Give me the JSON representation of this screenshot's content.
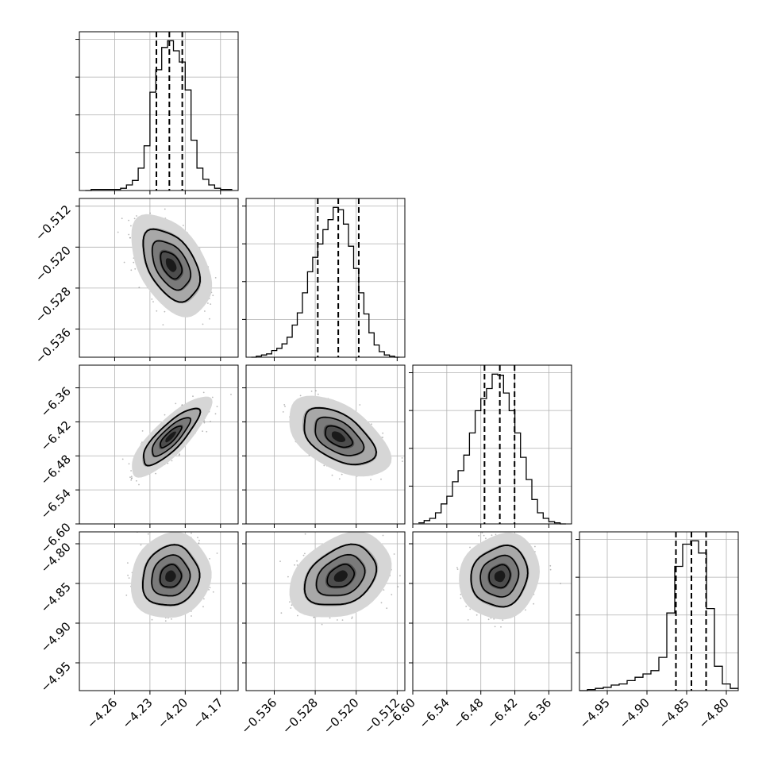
{
  "chart_data": {
    "type": "corner",
    "grid": true,
    "quantiles_shown": [
      0.16,
      0.5,
      0.84
    ],
    "parameters": [
      {
        "range": [
          -4.29,
          -4.155
        ],
        "ticks": [
          -4.26,
          -4.23,
          -4.2,
          -4.17
        ],
        "tick_labels": [
          "−4.26",
          "−4.23",
          "−4.20",
          "−4.17"
        ],
        "quantile_values": [
          -4.2245,
          -4.2135,
          -4.2025
        ],
        "hist_bins": [
          -4.285,
          -4.28,
          -4.275,
          -4.27,
          -4.265,
          -4.26,
          -4.255,
          -4.25,
          -4.245,
          -4.24,
          -4.235,
          -4.23,
          -4.225,
          -4.22,
          -4.215,
          -4.21,
          -4.205,
          -4.2,
          -4.195,
          -4.19,
          -4.185,
          -4.18,
          -4.175,
          -4.17,
          -4.165,
          -4.16
        ],
        "hist_counts": [
          0,
          1,
          1,
          1,
          1,
          1,
          2,
          5,
          9,
          20,
          40,
          88,
          108,
          128,
          134,
          125,
          115,
          90,
          45,
          20,
          10,
          5,
          2,
          1,
          1
        ]
      },
      {
        "range": [
          -0.5415,
          -0.5105
        ],
        "ticks": [
          -0.536,
          -0.528,
          -0.52,
          -0.512
        ],
        "tick_labels": [
          "−0.536",
          "−0.528",
          "−0.520",
          "−0.512"
        ],
        "quantile_values": [
          -0.5275,
          -0.5235,
          -0.5195
        ],
        "hist_bins": [
          -0.5405,
          -0.5395,
          -0.5385,
          -0.5375,
          -0.5365,
          -0.5355,
          -0.5345,
          -0.5335,
          -0.5325,
          -0.5315,
          -0.5305,
          -0.5295,
          -0.5285,
          -0.5275,
          -0.5265,
          -0.5255,
          -0.5245,
          -0.5235,
          -0.5225,
          -0.5215,
          -0.5205,
          -0.5195,
          -0.5185,
          -0.5175,
          -0.5165,
          -0.5155,
          -0.5145,
          -0.5135,
          -0.5125,
          -0.5115
        ],
        "hist_counts": [
          0,
          1,
          2,
          3,
          6,
          8,
          12,
          18,
          29,
          40,
          58,
          77,
          90,
          102,
          115,
          124,
          135,
          133,
          120,
          100,
          80,
          58,
          39,
          22,
          11,
          5,
          2,
          1,
          0
        ]
      },
      {
        "range": [
          -6.6,
          -6.32
        ],
        "ticks": [
          -6.6,
          -6.54,
          -6.48,
          -6.42,
          -6.36
        ],
        "tick_labels": [
          "−6.60",
          "−6.54",
          "−6.48",
          "−6.42",
          "−6.36"
        ],
        "quantile_values": [
          -6.4735,
          -6.4465,
          -6.4205
        ],
        "hist_bins": [
          -6.59,
          -6.58,
          -6.57,
          -6.56,
          -6.55,
          -6.54,
          -6.53,
          -6.52,
          -6.51,
          -6.5,
          -6.49,
          -6.48,
          -6.47,
          -6.46,
          -6.45,
          -6.44,
          -6.43,
          -6.42,
          -6.41,
          -6.4,
          -6.39,
          -6.38,
          -6.37,
          -6.36,
          -6.35,
          -6.34,
          -6.33
        ],
        "hist_counts": [
          1,
          3,
          5,
          10,
          18,
          25,
          38,
          48,
          62,
          82,
          102,
          113,
          122,
          135,
          134,
          118,
          102,
          82,
          60,
          40,
          22,
          10,
          5,
          2,
          1,
          0
        ]
      },
      {
        "range": [
          -4.985,
          -4.785
        ],
        "ticks": [
          -4.95,
          -4.9,
          -4.85,
          -4.8
        ],
        "tick_labels": [
          "−4.95",
          "−4.90",
          "−4.85",
          "−4.80"
        ],
        "quantile_values": [
          -4.8635,
          -4.844,
          -4.8255
        ],
        "hist_bins": [
          -4.985,
          -4.975,
          -4.965,
          -4.955,
          -4.945,
          -4.935,
          -4.925,
          -4.915,
          -4.905,
          -4.895,
          -4.885,
          -4.875,
          -4.865,
          -4.855,
          -4.845,
          -4.835,
          -4.825,
          -4.815,
          -4.805,
          -4.795,
          -4.785
        ],
        "hist_counts": [
          0,
          1,
          2,
          3,
          5,
          6,
          9,
          12,
          15,
          18,
          30,
          70,
          112,
          132,
          135,
          124,
          74,
          22,
          6,
          2
        ]
      }
    ],
    "pairs": [
      {
        "x": 0,
        "y": 1,
        "center": [
          -4.212,
          -0.5235
        ],
        "sd": [
          0.012,
          0.0035
        ],
        "corr": -0.45
      },
      {
        "x": 0,
        "y": 2,
        "center": [
          -4.2125,
          -6.4465
        ],
        "sd": [
          0.012,
          0.025
        ],
        "corr": 0.82
      },
      {
        "x": 1,
        "y": 2,
        "center": [
          -0.5235,
          -6.4465
        ],
        "sd": [
          0.0035,
          0.025
        ],
        "corr": -0.5
      },
      {
        "x": 0,
        "y": 3,
        "center": [
          -4.2125,
          -4.841
        ],
        "sd": [
          0.012,
          0.019
        ],
        "corr": 0.1
      },
      {
        "x": 1,
        "y": 3,
        "center": [
          -0.523,
          -4.841
        ],
        "sd": [
          0.0035,
          0.019
        ],
        "corr": 0.3
      },
      {
        "x": 2,
        "y": 3,
        "center": [
          -6.4465,
          -4.841
        ],
        "sd": [
          0.025,
          0.019
        ],
        "corr": 0.1
      }
    ],
    "style": {
      "line_color": "#000000",
      "grid_color": "#b0b0b0",
      "scatter_color": "#808080",
      "density_levels": [
        "#d6d6d6",
        "#a8a8a8",
        "#7a7a7a",
        "#4d4d4d",
        "#1a1a1a"
      ]
    }
  }
}
